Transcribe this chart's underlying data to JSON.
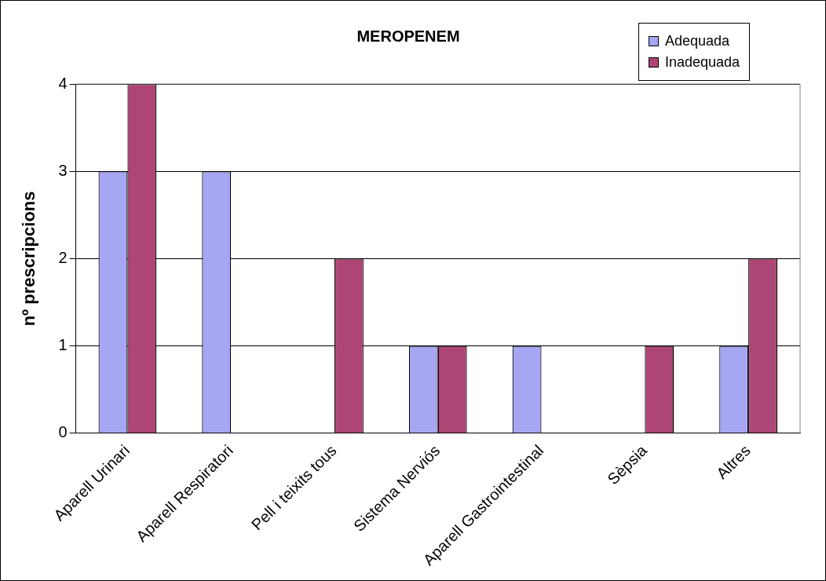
{
  "chart_data": {
    "type": "bar",
    "title": "MEROPENEM",
    "ylabel": "nº prescripcions",
    "categories": [
      "Aparell Urinari",
      "Aparell Respiratori",
      "Pell i teixits tous",
      "Sistema Nerviós",
      "Aparell Gastrointestinal",
      "Sèpsia",
      "Altres"
    ],
    "series": [
      {
        "name": "Adequada",
        "color": "#a6a6f2",
        "values": [
          3,
          3,
          0,
          1,
          1,
          0,
          1
        ]
      },
      {
        "name": "Inadequada",
        "color": "#ad4674",
        "values": [
          4,
          0,
          2,
          1,
          0,
          1,
          2
        ]
      }
    ],
    "ylim": [
      0,
      4
    ],
    "yticks": [
      0,
      1,
      2,
      3,
      4
    ],
    "grid": "y",
    "legend": "top right"
  }
}
